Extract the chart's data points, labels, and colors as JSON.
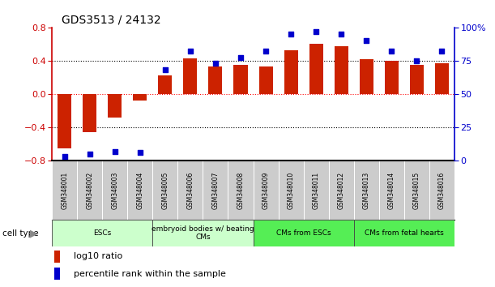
{
  "title": "GDS3513 / 24132",
  "samples": [
    "GSM348001",
    "GSM348002",
    "GSM348003",
    "GSM348004",
    "GSM348005",
    "GSM348006",
    "GSM348007",
    "GSM348008",
    "GSM348009",
    "GSM348010",
    "GSM348011",
    "GSM348012",
    "GSM348013",
    "GSM348014",
    "GSM348015",
    "GSM348016"
  ],
  "log10_ratio": [
    -0.65,
    -0.46,
    -0.28,
    -0.08,
    0.22,
    0.43,
    0.33,
    0.35,
    0.33,
    0.52,
    0.6,
    0.57,
    0.42,
    0.4,
    0.35,
    0.37
  ],
  "percentile_rank": [
    3,
    5,
    7,
    6,
    68,
    82,
    73,
    77,
    82,
    95,
    97,
    95,
    90,
    82,
    75,
    82
  ],
  "groups": [
    {
      "label": "ESCs",
      "start": 0,
      "end": 3,
      "color": "#ccffcc"
    },
    {
      "label": "embryoid bodies w/ beating\nCMs",
      "start": 4,
      "end": 7,
      "color": "#ccffcc"
    },
    {
      "label": "CMs from ESCs",
      "start": 8,
      "end": 11,
      "color": "#55ee55"
    },
    {
      "label": "CMs from fetal hearts",
      "start": 12,
      "end": 15,
      "color": "#55ee55"
    }
  ],
  "bar_color": "#cc2200",
  "dot_color": "#0000cc",
  "ylim_left": [
    -0.8,
    0.8
  ],
  "ylim_right": [
    0,
    100
  ],
  "yticks_left": [
    -0.8,
    -0.4,
    0,
    0.4,
    0.8
  ],
  "yticks_right": [
    0,
    25,
    50,
    75,
    100
  ],
  "ytick_labels_right": [
    "0",
    "25",
    "50",
    "75",
    "100%"
  ],
  "left_color": "#cc0000",
  "right_color": "#0000cc",
  "sample_box_color": "#cccccc",
  "cell_type_label": "cell type",
  "legend_items": [
    {
      "label": "log10 ratio",
      "color": "#cc2200"
    },
    {
      "label": "percentile rank within the sample",
      "color": "#0000cc"
    }
  ]
}
